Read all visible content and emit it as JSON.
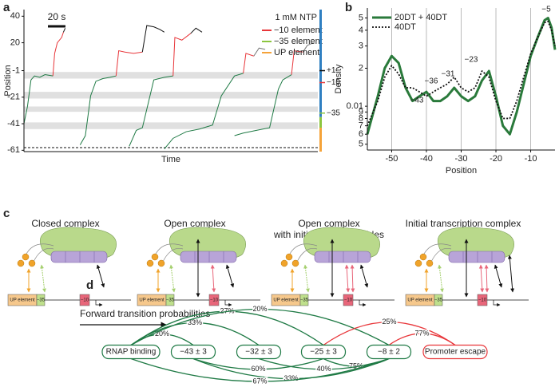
{
  "panel_labels": [
    "a",
    "b",
    "c",
    "d"
  ],
  "chart_data": [
    {
      "type": "trace",
      "ylabel": "Position",
      "xlabel": "Time",
      "xlim": [
        0,
        335
      ],
      "ylim": [
        -62,
        45
      ],
      "yticks": [
        40,
        20,
        -1,
        -21,
        -41,
        -61
      ],
      "scale_bar": {
        "value": 20,
        "label": "20 s"
      },
      "annotation": "1 mM NTP",
      "legend": [
        {
          "name": "−10 element",
          "color": "#e8363a"
        },
        {
          "name": "−35 element",
          "color": "#8cc63f"
        },
        {
          "name": "UP element",
          "color": "#f5a33a"
        }
      ],
      "bands": [
        [
          -7,
          -2
        ],
        [
          -22,
          -17
        ],
        [
          -32,
          -28
        ],
        [
          -45,
          -40
        ]
      ],
      "baseline": -59,
      "element_regions": [
        {
          "color": "#2f7fc1",
          "range": [
            -36,
            45
          ]
        },
        {
          "color": "#8cc63f",
          "range": [
            -44,
            -36
          ]
        },
        {
          "color": "#f5a33a",
          "range": [
            -62,
            -44
          ]
        }
      ],
      "markers": [
        {
          "label": "+1",
          "value": -1,
          "color": "#111"
        },
        {
          "label": "−10",
          "value": -10,
          "color": "#e8363a"
        },
        {
          "label": "−35",
          "value": -33,
          "color": "#8cc63f"
        }
      ],
      "traces": [
        {
          "color": "#1f7a45",
          "x": [
            0,
            4,
            8,
            12,
            18,
            24,
            33
          ],
          "values": [
            -41,
            -28,
            -8,
            -5,
            -6,
            -4,
            -5
          ]
        },
        {
          "color": "#e8363a",
          "x": [
            33,
            35,
            38,
            43,
            45
          ],
          "values": [
            -5,
            12,
            20,
            24,
            28
          ]
        },
        {
          "color": "#111111",
          "x": [
            45,
            47
          ],
          "values": [
            28,
            31
          ]
        },
        {
          "color": "#1f7a45",
          "x": [
            64,
            70,
            76,
            82,
            90,
            98,
            105
          ],
          "values": [
            -57,
            -50,
            -20,
            -9,
            -7,
            -6,
            -5
          ]
        },
        {
          "color": "#e8363a",
          "x": [
            105,
            108,
            115,
            125,
            135
          ],
          "values": [
            -5,
            14,
            13,
            12,
            13
          ]
        },
        {
          "color": "#111111",
          "x": [
            135,
            140,
            148,
            155,
            160
          ],
          "values": [
            13,
            33,
            32,
            30,
            28
          ]
        },
        {
          "color": "#1f7a45",
          "x": [
            120,
            128,
            135,
            148,
            160,
            170
          ],
          "values": [
            -58,
            -46,
            -44,
            -8,
            -6,
            -5
          ]
        },
        {
          "color": "#e8363a",
          "x": [
            170,
            172,
            180,
            190
          ],
          "values": [
            -5,
            24,
            22,
            27
          ]
        },
        {
          "color": "#111111",
          "x": [
            190,
            196,
            203
          ],
          "values": [
            27,
            31,
            28
          ]
        },
        {
          "color": "#1f7a45",
          "x": [
            160,
            170,
            185,
            200,
            215,
            225,
            240,
            250
          ],
          "values": [
            -60,
            -52,
            -47,
            -45,
            -42,
            -20,
            -5,
            -3
          ]
        },
        {
          "color": "#e8363a",
          "x": [
            250,
            253,
            262
          ],
          "values": [
            -3,
            12,
            10
          ]
        },
        {
          "color": "#777777",
          "x": [
            262,
            268,
            275
          ],
          "values": [
            10,
            16,
            15
          ]
        },
        {
          "color": "#1f7a45",
          "x": [
            240,
            250,
            265,
            280,
            290,
            295,
            305
          ],
          "values": [
            -50,
            -48,
            -46,
            -44,
            -15,
            -8,
            -4
          ]
        },
        {
          "color": "#e8363a",
          "x": [
            305,
            308,
            318
          ],
          "values": [
            -4,
            14,
            13
          ]
        },
        {
          "color": "#777777",
          "x": [
            318,
            323,
            330
          ],
          "values": [
            13,
            18,
            20
          ]
        }
      ]
    },
    {
      "type": "line",
      "ylabel": "Density",
      "xlabel": "Position",
      "log_y": true,
      "grid": true,
      "xlim": [
        -57,
        -3
      ],
      "ylim": [
        0.0045,
        0.06
      ],
      "xticks": [
        -50,
        -40,
        -30,
        -20,
        -10
      ],
      "yticks": [
        {
          "value": 0.05,
          "label": "5"
        },
        {
          "value": 0.04,
          "label": "4"
        },
        {
          "value": 0.03,
          "label": "3"
        },
        {
          "value": 0.02,
          "label": "2"
        },
        0.01,
        {
          "value": 0.009,
          "label": "9"
        },
        {
          "value": 0.008,
          "label": "8"
        },
        {
          "value": 0.007,
          "label": "7"
        },
        {
          "value": 0.006,
          "label": "6"
        },
        {
          "value": 0.005,
          "label": "5"
        }
      ],
      "x": [
        -57,
        -54,
        -52,
        -50,
        -48,
        -46,
        -44,
        -42,
        -40,
        -38,
        -36,
        -34,
        -32,
        -30,
        -28,
        -26,
        -24,
        -22,
        -20,
        -18,
        -16,
        -14,
        -12,
        -10,
        -8,
        -6,
        -5,
        -4,
        -3
      ],
      "series": [
        {
          "name": "20DT + 40DT",
          "color": "#2a7a3b",
          "dash": false,
          "values": [
            0.006,
            0.012,
            0.02,
            0.025,
            0.022,
            0.014,
            0.011,
            0.012,
            0.013,
            0.011,
            0.011,
            0.012,
            0.014,
            0.012,
            0.011,
            0.012,
            0.016,
            0.019,
            0.012,
            0.007,
            0.006,
            0.009,
            0.015,
            0.025,
            0.035,
            0.048,
            0.05,
            0.042,
            0.028
          ]
        },
        {
          "name": "40DT",
          "color": "#111111",
          "dash": true,
          "values": [
            0.007,
            0.011,
            0.017,
            0.021,
            0.018,
            0.014,
            0.014,
            0.013,
            0.012,
            0.013,
            0.014,
            0.015,
            0.017,
            0.014,
            0.013,
            0.014,
            0.019,
            0.017,
            0.011,
            0.008,
            0.008,
            0.011,
            0.017,
            0.026,
            0.035,
            0.046,
            0.047,
            0.04,
            0.03
          ]
        }
      ],
      "annotations": [
        "−43",
        "−36",
        "−31",
        "−23",
        "−5"
      ]
    }
  ],
  "panel_c": {
    "elements": [
      "UP element",
      "−35",
      "−10"
    ],
    "complexes": [
      {
        "title": [
          "Closed complex"
        ]
      },
      {
        "title": [
          "Open complex"
        ]
      },
      {
        "title": [
          "Open complex",
          "with initial two nucleotides"
        ]
      },
      {
        "title": [
          "Initial transcription complex"
        ]
      }
    ]
  },
  "panel_d": {
    "title": "Forward transition probabilities",
    "nodes": [
      {
        "label": "RNAP binding",
        "color": "#1f7a45"
      },
      {
        "label": "−43 ± 3",
        "color": "#1f7a45"
      },
      {
        "label": "−32 ± 3",
        "color": "#1f7a45"
      },
      {
        "label": "−25 ± 3",
        "color": "#1f7a45"
      },
      {
        "label": "−8 ± 2",
        "color": "#1f7a45"
      },
      {
        "label": "Promoter escape",
        "color": "#e8363a"
      }
    ],
    "edges": [
      {
        "from": 0,
        "to": 1,
        "label": "20%",
        "side": "above",
        "color": "#1f7a45"
      },
      {
        "from": 0,
        "to": 2,
        "label": "33%",
        "side": "above",
        "color": "#1f7a45"
      },
      {
        "from": 0,
        "to": 3,
        "label": "27%",
        "side": "above",
        "color": "#1f7a45"
      },
      {
        "from": 0,
        "to": 4,
        "label": "20%",
        "side": "above",
        "color": "#1f7a45"
      },
      {
        "from": 3,
        "to": 5,
        "label": "25%",
        "side": "above",
        "color": "#e8363a"
      },
      {
        "from": 4,
        "to": 5,
        "label": "77%",
        "side": "above",
        "color": "#e8363a"
      },
      {
        "from": 1,
        "to": 3,
        "label": "60%",
        "side": "below",
        "color": "#1f7a45"
      },
      {
        "from": 3,
        "to": 4,
        "label": "75%",
        "side": "below",
        "color": "#1f7a45"
      },
      {
        "from": 1,
        "to": 4,
        "label": "33%",
        "side": "below",
        "color": "#1f7a45"
      },
      {
        "from": 2,
        "to": 4,
        "label": "40%",
        "side": "below",
        "color": "#1f7a45"
      },
      {
        "from": 0,
        "to": 4,
        "label": "67%",
        "side": "below",
        "color": "#1f7a45"
      }
    ]
  }
}
